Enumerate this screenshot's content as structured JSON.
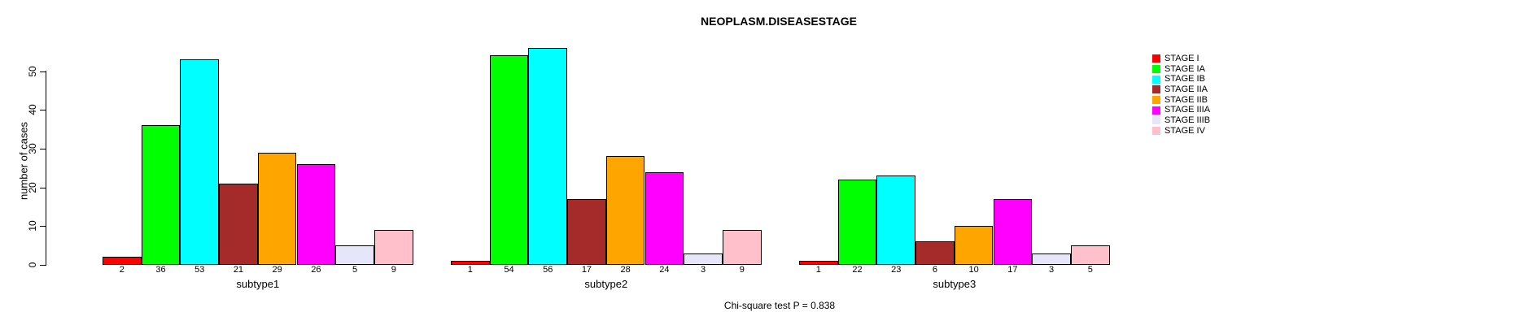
{
  "chart_data": {
    "type": "bar",
    "title": "NEOPLASM.DISEASESTAGE",
    "ylabel": "number of cases",
    "xlabel": "",
    "footnote": "Chi-square test P = 0.838",
    "ylim": [
      0,
      58
    ],
    "yticks": [
      0,
      10,
      20,
      30,
      40,
      50
    ],
    "grid": false,
    "legend_position": "right",
    "bar_value_labels": true,
    "categories": [
      "subtype1",
      "subtype2",
      "subtype3"
    ],
    "series": [
      {
        "name": "STAGE I",
        "color": "#ff0000",
        "values": [
          2,
          1,
          1
        ]
      },
      {
        "name": "STAGE IA",
        "color": "#00ff00",
        "values": [
          36,
          54,
          22
        ]
      },
      {
        "name": "STAGE IB",
        "color": "#00ffff",
        "values": [
          53,
          56,
          23
        ]
      },
      {
        "name": "STAGE IIA",
        "color": "#a52a2a",
        "values": [
          21,
          17,
          6
        ]
      },
      {
        "name": "STAGE IIB",
        "color": "#ffa500",
        "values": [
          29,
          28,
          10
        ]
      },
      {
        "name": "STAGE IIIA",
        "color": "#ff00ff",
        "values": [
          26,
          24,
          17
        ]
      },
      {
        "name": "STAGE IIIB",
        "color": "#e6e6fa",
        "values": [
          5,
          3,
          3
        ]
      },
      {
        "name": "STAGE IV",
        "color": "#ffc0cb",
        "values": [
          9,
          9,
          5
        ]
      }
    ]
  }
}
